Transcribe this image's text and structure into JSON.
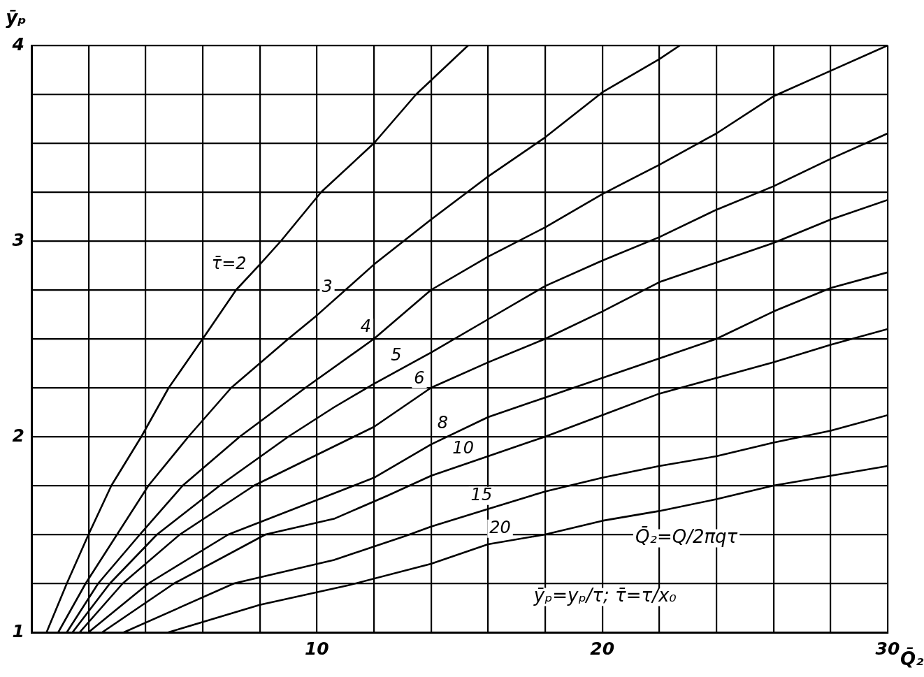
{
  "chart_data": {
    "type": "line",
    "xlabel": "Q̄₂",
    "ylabel": "ȳₚ",
    "xlim": [
      0,
      30
    ],
    "ylim": [
      1,
      4
    ],
    "xticks": [
      {
        "value": 0,
        "label": null
      },
      {
        "value": 2,
        "label": null
      },
      {
        "value": 4,
        "label": null
      },
      {
        "value": 6,
        "label": null
      },
      {
        "value": 8,
        "label": null
      },
      10,
      {
        "value": 12,
        "label": null
      },
      {
        "value": 14,
        "label": null
      },
      {
        "value": 16,
        "label": null
      },
      {
        "value": 18,
        "label": null
      },
      20,
      {
        "value": 22,
        "label": null
      },
      {
        "value": 24,
        "label": null
      },
      {
        "value": 26,
        "label": null
      },
      {
        "value": 28,
        "label": null
      },
      30
    ],
    "yticks": [
      1,
      {
        "value": 1.25,
        "label": null
      },
      {
        "value": 1.5,
        "label": null
      },
      {
        "value": 1.75,
        "label": null
      },
      2,
      {
        "value": 2.25,
        "label": null
      },
      {
        "value": 2.5,
        "label": null
      },
      {
        "value": 2.75,
        "label": null
      },
      3,
      {
        "value": 3.25,
        "label": null
      },
      {
        "value": 3.5,
        "label": null
      },
      {
        "value": 3.75,
        "label": null
      },
      4
    ],
    "grid": true,
    "legend": false,
    "annotations": [
      "Q̄₂=Q/2πqτ",
      "ȳₚ=yₚ/τ; τ̄=τ/x₀"
    ],
    "series": [
      {
        "name": "τ̄=2",
        "color": "#000000",
        "x": [
          0.53,
          1.24,
          2.0,
          2.8,
          3.85,
          4.81,
          6,
          7.17,
          8,
          8.74,
          10.15,
          12,
          13.48,
          15.3
        ],
        "values": [
          1,
          1.25,
          1.5,
          1.75,
          2,
          2.25,
          2.5,
          2.75,
          2.88,
          3,
          3.25,
          3.5,
          3.75,
          4
        ]
      },
      {
        "name": "3",
        "color": "#000000",
        "x": [
          0.94,
          1.9,
          3.0,
          4.1,
          5.5,
          7.0,
          9.0,
          10,
          12,
          14,
          16,
          18,
          20,
          22,
          22.72
        ],
        "values": [
          1,
          1.25,
          1.5,
          1.75,
          2,
          2.25,
          2.5,
          2.62,
          2.88,
          3.11,
          3.33,
          3.53,
          3.76,
          3.93,
          4
        ]
      },
      {
        "name": "4",
        "color": "#000000",
        "x": [
          1.24,
          2.34,
          3.8,
          5.3,
          7.3,
          9.6,
          12,
          14,
          16,
          18,
          20,
          22,
          24,
          26,
          28,
          30
        ],
        "values": [
          1,
          1.25,
          1.5,
          1.75,
          2,
          2.25,
          2.5,
          2.75,
          2.92,
          3.07,
          3.24,
          3.39,
          3.55,
          3.74,
          3.87,
          4
        ]
      },
      {
        "name": "5",
        "color": "#000000",
        "x": [
          1.44,
          2.75,
          4.4,
          6.6,
          9,
          10.6,
          12,
          14,
          16,
          18,
          20,
          22,
          24,
          26,
          28,
          30
        ],
        "values": [
          1,
          1.25,
          1.5,
          1.75,
          2,
          2.15,
          2.27,
          2.43,
          2.6,
          2.77,
          2.9,
          3.02,
          3.16,
          3.28,
          3.42,
          3.55
        ]
      },
      {
        "name": "6",
        "color": "#000000",
        "x": [
          1.69,
          3.2,
          5.2,
          7.8,
          11.3,
          12,
          14,
          16,
          18,
          20,
          22,
          24,
          26,
          28,
          30
        ],
        "values": [
          1,
          1.25,
          1.5,
          1.75,
          2,
          2.05,
          2.25,
          2.38,
          2.5,
          2.64,
          2.79,
          2.89,
          2.99,
          3.11,
          3.21
        ]
      },
      {
        "name": "8",
        "color": "#000000",
        "x": [
          2.0,
          4.1,
          6.9,
          11.3,
          12,
          14,
          16,
          18,
          20,
          22,
          24,
          26,
          28,
          30
        ],
        "values": [
          1,
          1.25,
          1.5,
          1.75,
          1.79,
          1.96,
          2.1,
          2.2,
          2.3,
          2.4,
          2.5,
          2.64,
          2.76,
          2.84
        ]
      },
      {
        "name": "10",
        "color": "#000000",
        "x": [
          2.48,
          5,
          8.2,
          10.6,
          12.5,
          14,
          16,
          18,
          20,
          22,
          24,
          26,
          28,
          30
        ],
        "values": [
          1,
          1.25,
          1.5,
          1.58,
          1.7,
          1.8,
          1.9,
          2.0,
          2.11,
          2.22,
          2.3,
          2.38,
          2.47,
          2.55
        ]
      },
      {
        "name": "15",
        "color": "#000000",
        "x": [
          3.24,
          7.1,
          10.6,
          13.06,
          14,
          16,
          18,
          20,
          22,
          24,
          26,
          28,
          30
        ],
        "values": [
          1,
          1.25,
          1.37,
          1.49,
          1.54,
          1.63,
          1.72,
          1.79,
          1.85,
          1.9,
          1.97,
          2.03,
          2.11
        ]
      },
      {
        "name": "20",
        "color": "#000000",
        "x": [
          4.8,
          8,
          11.1,
          14,
          16,
          18,
          20,
          22,
          24,
          26,
          28,
          30
        ],
        "values": [
          1,
          1.14,
          1.24,
          1.35,
          1.45,
          1.5,
          1.57,
          1.62,
          1.68,
          1.75,
          1.8,
          1.85
        ]
      }
    ]
  }
}
